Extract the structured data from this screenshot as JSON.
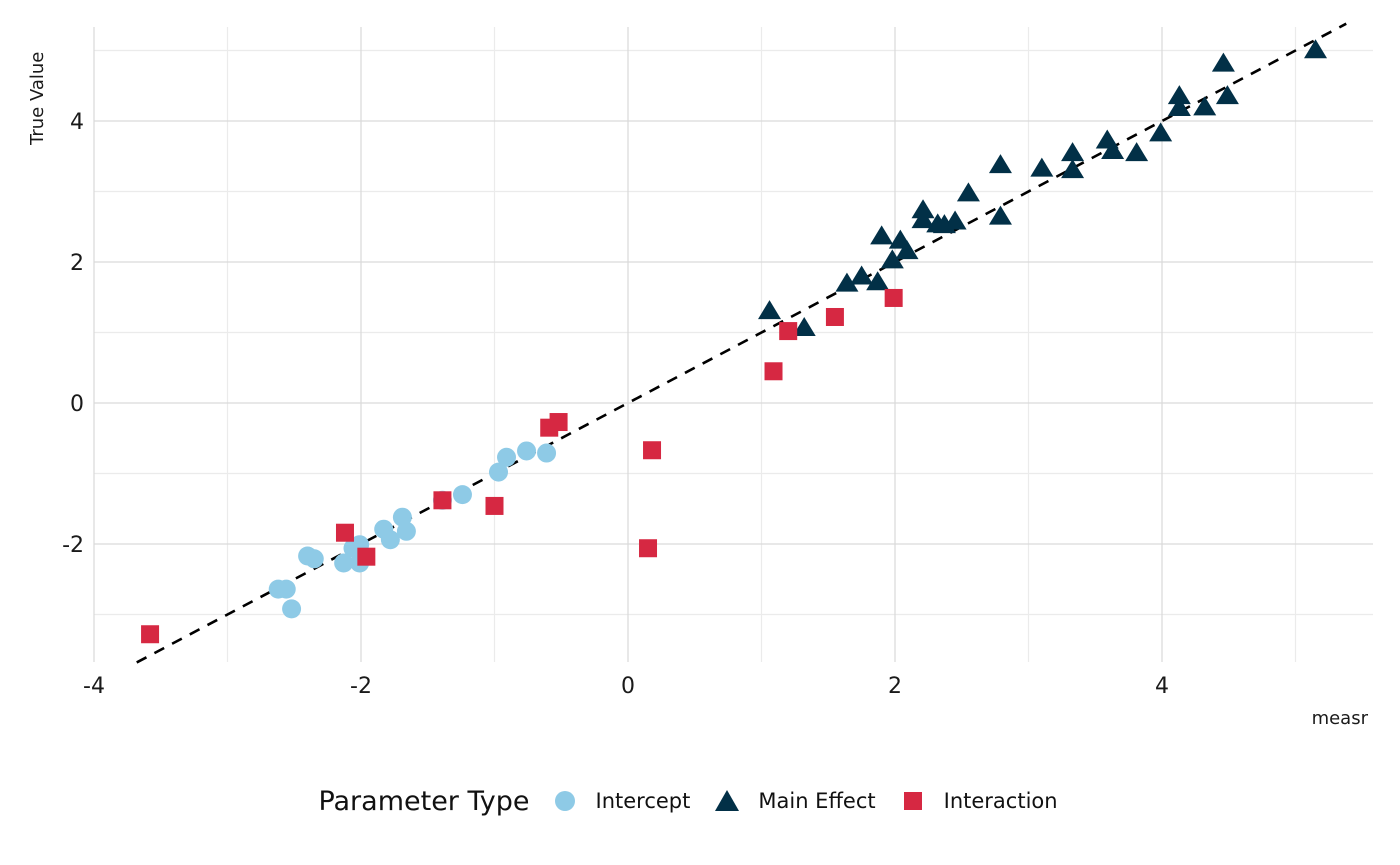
{
  "chart_data": {
    "type": "scatter",
    "title": "",
    "xlabel": "measr",
    "ylabel": "True Value",
    "xlim": [
      -4.0,
      5.6
    ],
    "ylim": [
      -3.65,
      5.35
    ],
    "x_ticks": [
      -4,
      -2,
      0,
      2,
      4
    ],
    "y_ticks": [
      -2,
      0,
      2,
      4
    ],
    "x_tick_labels": [
      "-4",
      "-2",
      "0",
      "2",
      "4"
    ],
    "y_tick_labels": [
      "-2",
      "0",
      "2",
      "4"
    ],
    "x_minor_gridlines": [
      -3,
      -1,
      1,
      3,
      5
    ],
    "y_minor_gridlines": [
      -3,
      -1,
      1,
      3,
      5
    ],
    "grid": true,
    "legend_position": "bottom",
    "legend_title": "Parameter Type",
    "reference_line": {
      "type": "identity",
      "slope": 1,
      "intercept": 0,
      "style": "dashed",
      "color": "#000000"
    },
    "series": [
      {
        "name": "Intercept",
        "marker": "circle",
        "color": "#8ecae6",
        "points": [
          [
            -2.62,
            -2.64
          ],
          [
            -2.56,
            -2.64
          ],
          [
            -2.52,
            -2.92
          ],
          [
            -2.4,
            -2.17
          ],
          [
            -2.35,
            -2.21
          ],
          [
            -2.13,
            -2.27
          ],
          [
            -2.06,
            -2.06
          ],
          [
            -2.01,
            -2.01
          ],
          [
            -2.01,
            -2.27
          ],
          [
            -1.83,
            -1.79
          ],
          [
            -1.78,
            -1.94
          ],
          [
            -1.69,
            -1.62
          ],
          [
            -1.66,
            -1.82
          ],
          [
            -1.39,
            -1.38
          ],
          [
            -1.24,
            -1.3
          ],
          [
            -0.97,
            -0.98
          ],
          [
            -0.91,
            -0.77
          ],
          [
            -0.76,
            -0.68
          ],
          [
            -0.61,
            -0.71
          ]
        ]
      },
      {
        "name": "Main Effect",
        "marker": "triangle",
        "color": "#023047",
        "points": [
          [
            1.06,
            1.28
          ],
          [
            1.32,
            1.04
          ],
          [
            1.64,
            1.67
          ],
          [
            1.75,
            1.77
          ],
          [
            1.87,
            1.69
          ],
          [
            1.9,
            2.34
          ],
          [
            1.98,
            2.0
          ],
          [
            2.04,
            2.28
          ],
          [
            2.09,
            2.13
          ],
          [
            2.21,
            2.71
          ],
          [
            2.21,
            2.57
          ],
          [
            2.32,
            2.51
          ],
          [
            2.37,
            2.5
          ],
          [
            2.45,
            2.55
          ],
          [
            2.55,
            2.95
          ],
          [
            2.79,
            3.35
          ],
          [
            2.79,
            2.62
          ],
          [
            3.1,
            3.3
          ],
          [
            3.33,
            3.52
          ],
          [
            3.33,
            3.28
          ],
          [
            3.59,
            3.7
          ],
          [
            3.63,
            3.55
          ],
          [
            3.81,
            3.52
          ],
          [
            3.99,
            3.8
          ],
          [
            4.13,
            4.33
          ],
          [
            4.13,
            4.16
          ],
          [
            4.32,
            4.17
          ],
          [
            4.49,
            4.33
          ],
          [
            4.46,
            4.79
          ],
          [
            5.15,
            4.98
          ]
        ]
      },
      {
        "name": "Interaction",
        "marker": "square",
        "color": "#d62842",
        "points": [
          [
            -3.58,
            -3.28
          ],
          [
            -2.12,
            -1.84
          ],
          [
            -1.96,
            -2.18
          ],
          [
            -1.39,
            -1.38
          ],
          [
            -1.0,
            -1.46
          ],
          [
            -0.59,
            -0.35
          ],
          [
            -0.52,
            -0.27
          ],
          [
            0.15,
            -2.06
          ],
          [
            0.18,
            -0.67
          ],
          [
            1.09,
            0.45
          ],
          [
            1.2,
            1.02
          ],
          [
            1.55,
            1.22
          ],
          [
            1.99,
            1.49
          ]
        ]
      }
    ]
  },
  "legend": {
    "title": "Parameter Type",
    "items": [
      {
        "label": "Intercept",
        "marker": "circle",
        "color": "#8ecae6"
      },
      {
        "label": "Main Effect",
        "marker": "triangle",
        "color": "#023047"
      },
      {
        "label": "Interaction",
        "marker": "square",
        "color": "#d62842"
      }
    ]
  }
}
